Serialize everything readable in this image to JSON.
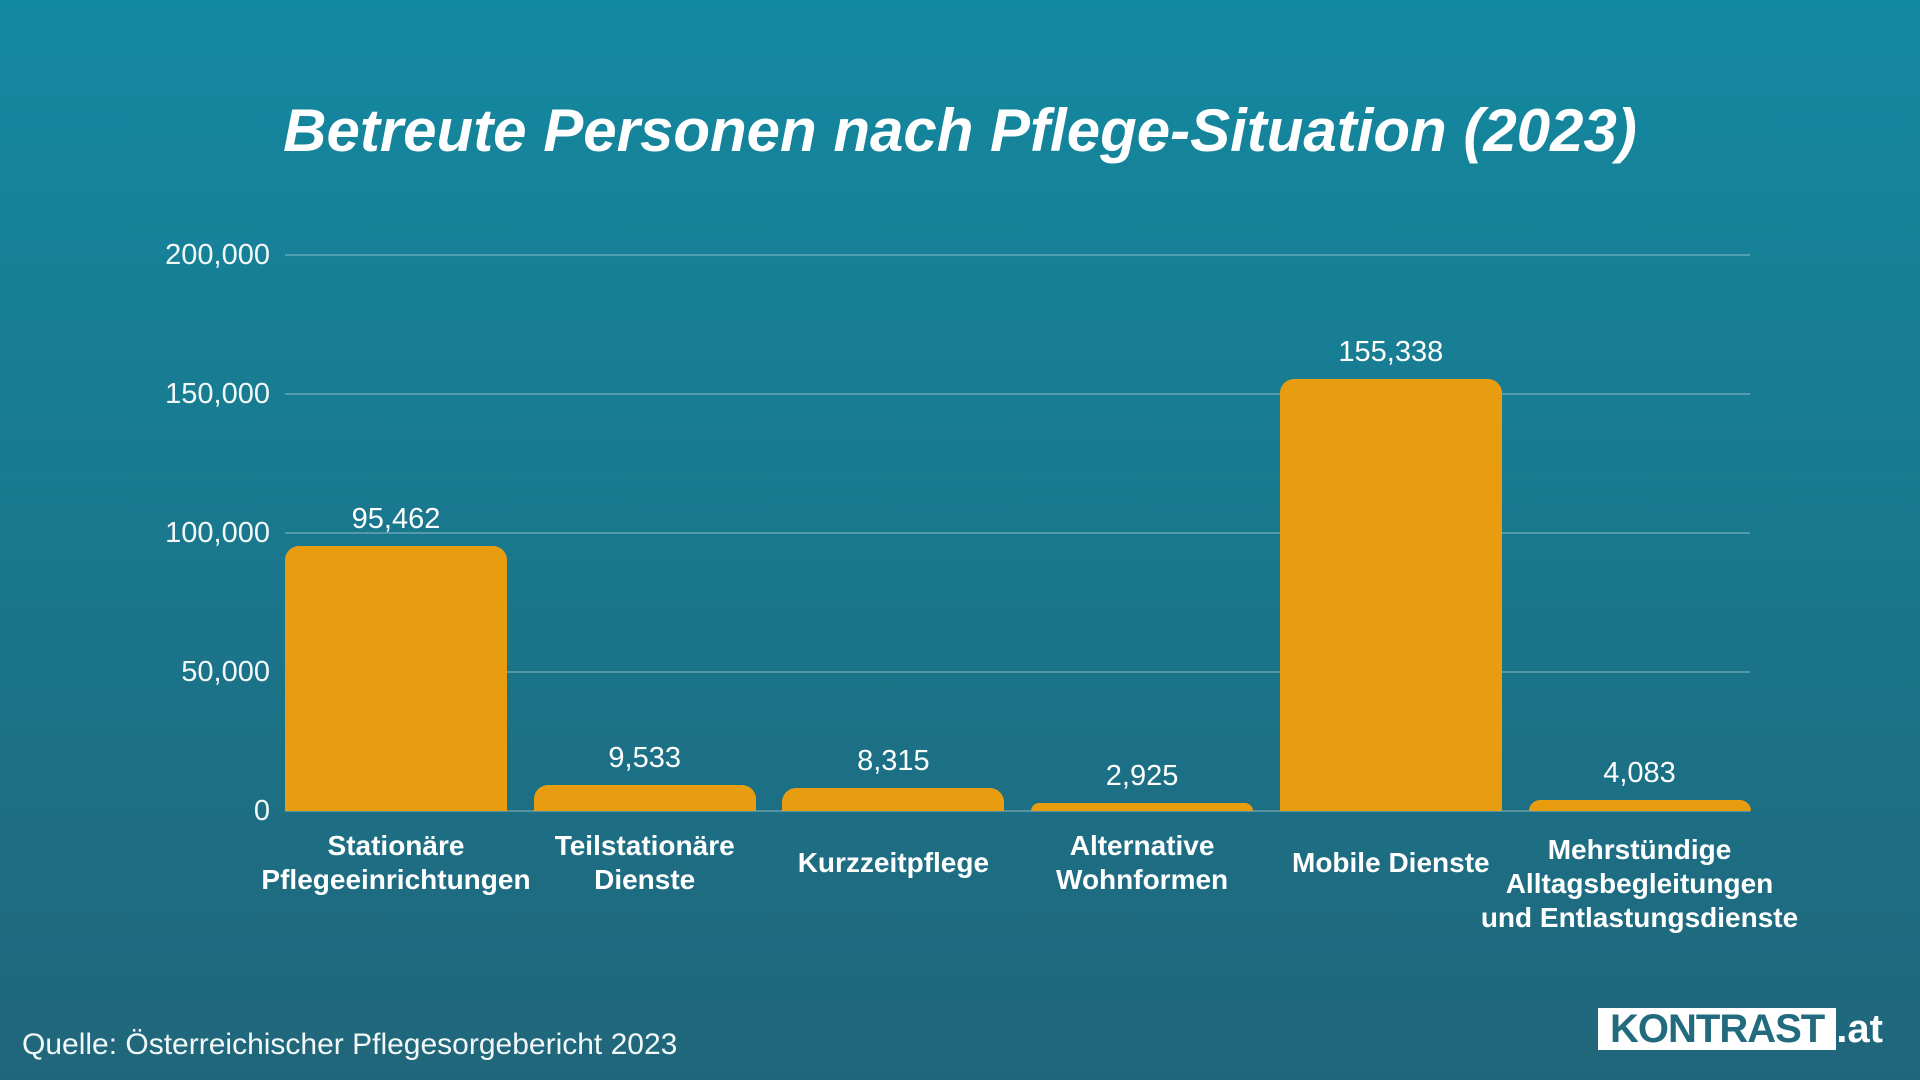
{
  "title": "Betreute Personen nach Pflege-Situation (2023)",
  "chart_data": {
    "type": "bar",
    "title": "Betreute Personen nach Pflege-Situation (2023)",
    "categories": [
      "Stationäre Pflegeeinrichtungen",
      "Teilstationäre Dienste",
      "Kurzzeitpflege",
      "Alternative Wohnformen",
      "Mobile Dienste",
      "Mehrstündige Alltagsbegleitungen und Entlastungsdienste"
    ],
    "category_lines": [
      [
        "Stationäre",
        "Pflegeeinrichtungen"
      ],
      [
        "Teilstationäre",
        "Dienste"
      ],
      [
        "Kurzzeitpflege"
      ],
      [
        "Alternative",
        "Wohnformen"
      ],
      [
        "Mobile Dienste"
      ],
      [
        "Mehrstündige",
        "Alltagsbegleitungen",
        "und Entlastungsdienste"
      ]
    ],
    "values": [
      95462,
      9533,
      8315,
      2925,
      155338,
      4083
    ],
    "value_labels": [
      "95,462",
      "9,533",
      "8,315",
      "2,925",
      "155,338",
      "4,083"
    ],
    "xlabel": "",
    "ylabel": "",
    "ylim": [
      0,
      200000
    ],
    "yticks": [
      0,
      50000,
      100000,
      150000,
      200000
    ],
    "ytick_labels": [
      "0",
      "50,000",
      "100,000",
      "150,000",
      "200,000"
    ],
    "grid": "horizontal",
    "legend": "none",
    "bar_color": "#E89C10"
  },
  "footer": {
    "source": "Quelle: Österreichischer Pflegesorgebericht 2023",
    "logo_main": "KONTRAST",
    "logo_suffix": ".at"
  },
  "colors": {
    "background_top": "#1389A0",
    "background_bottom": "#20667B",
    "bar": "#E89C10",
    "text": "#FFFFFF",
    "gridline": "rgba(255,255,255,0.25)",
    "logo_text": "#226B7E",
    "logo_background": "#FFFFFF"
  }
}
